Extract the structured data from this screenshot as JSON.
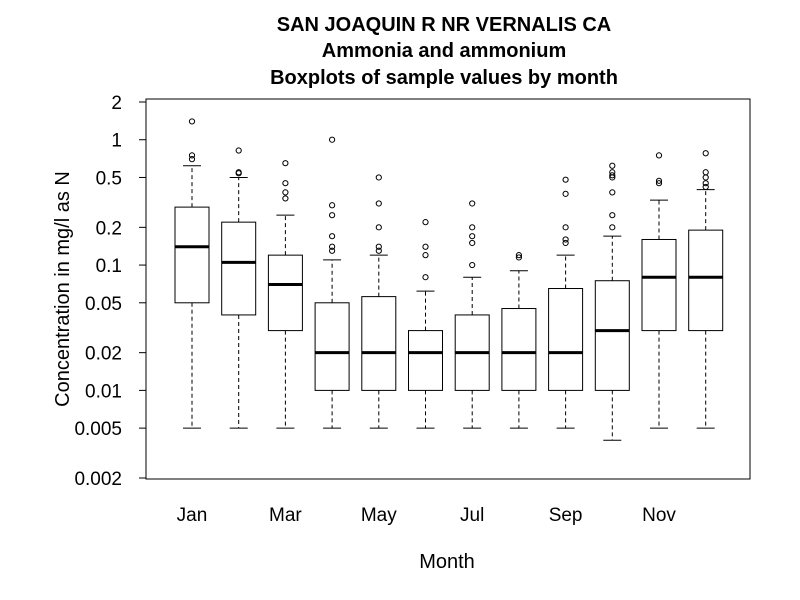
{
  "chart_data": {
    "type": "boxplot",
    "title": "SAN JOAQUIN R NR VERNALIS CA",
    "subtitle": "Ammonia and ammonium",
    "subtitle2": "Boxplots of sample values by month",
    "xlabel": "Month",
    "ylabel": "Concentration in mg/l as N",
    "yscale": "log",
    "ylim": [
      0.002,
      2
    ],
    "yticks": [
      2,
      1,
      0.5,
      0.2,
      0.1,
      0.05,
      0.02,
      0.01,
      0.005,
      0.002
    ],
    "ytick_labels": [
      "2",
      "1",
      "0.5",
      "0.2",
      "0.1",
      "0.05",
      "0.02",
      "0.01",
      "0.005",
      "0.002"
    ],
    "xtick_labels": [
      "Jan",
      "Mar",
      "May",
      "Jul",
      "Sep",
      "Nov"
    ],
    "xtick_positions": [
      1,
      3,
      5,
      7,
      9,
      11
    ],
    "months": [
      {
        "q1": 0.05,
        "median": 0.14,
        "q3": 0.29,
        "wlo": 0.005,
        "whi": 0.62,
        "outliers": [
          1.4,
          0.75,
          0.7
        ]
      },
      {
        "q1": 0.04,
        "median": 0.105,
        "q3": 0.22,
        "wlo": 0.005,
        "whi": 0.5,
        "outliers": [
          0.82,
          0.55,
          0.54
        ]
      },
      {
        "q1": 0.03,
        "median": 0.07,
        "q3": 0.12,
        "wlo": 0.005,
        "whi": 0.25,
        "outliers": [
          0.65,
          0.45,
          0.38,
          0.34
        ]
      },
      {
        "q1": 0.01,
        "median": 0.02,
        "q3": 0.05,
        "wlo": 0.005,
        "whi": 0.11,
        "outliers": [
          1.0,
          0.3,
          0.25,
          0.17,
          0.14,
          0.13
        ]
      },
      {
        "q1": 0.01,
        "median": 0.02,
        "q3": 0.056,
        "wlo": 0.005,
        "whi": 0.12,
        "outliers": [
          0.5,
          0.31,
          0.2,
          0.14,
          0.13
        ]
      },
      {
        "q1": 0.01,
        "median": 0.02,
        "q3": 0.03,
        "wlo": 0.005,
        "whi": 0.062,
        "outliers": [
          0.22,
          0.14,
          0.12,
          0.08
        ]
      },
      {
        "q1": 0.01,
        "median": 0.02,
        "q3": 0.04,
        "wlo": 0.005,
        "whi": 0.08,
        "outliers": [
          0.31,
          0.2,
          0.17,
          0.15,
          0.1
        ]
      },
      {
        "q1": 0.01,
        "median": 0.02,
        "q3": 0.045,
        "wlo": 0.005,
        "whi": 0.09,
        "outliers": [
          0.12,
          0.115
        ]
      },
      {
        "q1": 0.01,
        "median": 0.02,
        "q3": 0.065,
        "wlo": 0.005,
        "whi": 0.12,
        "outliers": [
          0.48,
          0.37,
          0.2,
          0.16,
          0.15
        ]
      },
      {
        "q1": 0.01,
        "median": 0.03,
        "q3": 0.075,
        "wlo": 0.004,
        "whi": 0.17,
        "outliers": [
          0.62,
          0.55,
          0.52,
          0.5,
          0.38,
          0.25,
          0.2
        ]
      },
      {
        "q1": 0.03,
        "median": 0.08,
        "q3": 0.16,
        "wlo": 0.005,
        "whi": 0.33,
        "outliers": [
          0.75,
          0.47,
          0.45
        ]
      },
      {
        "q1": 0.03,
        "median": 0.08,
        "q3": 0.19,
        "wlo": 0.005,
        "whi": 0.4,
        "outliers": [
          0.78,
          0.55,
          0.5,
          0.45,
          0.42
        ]
      }
    ]
  }
}
